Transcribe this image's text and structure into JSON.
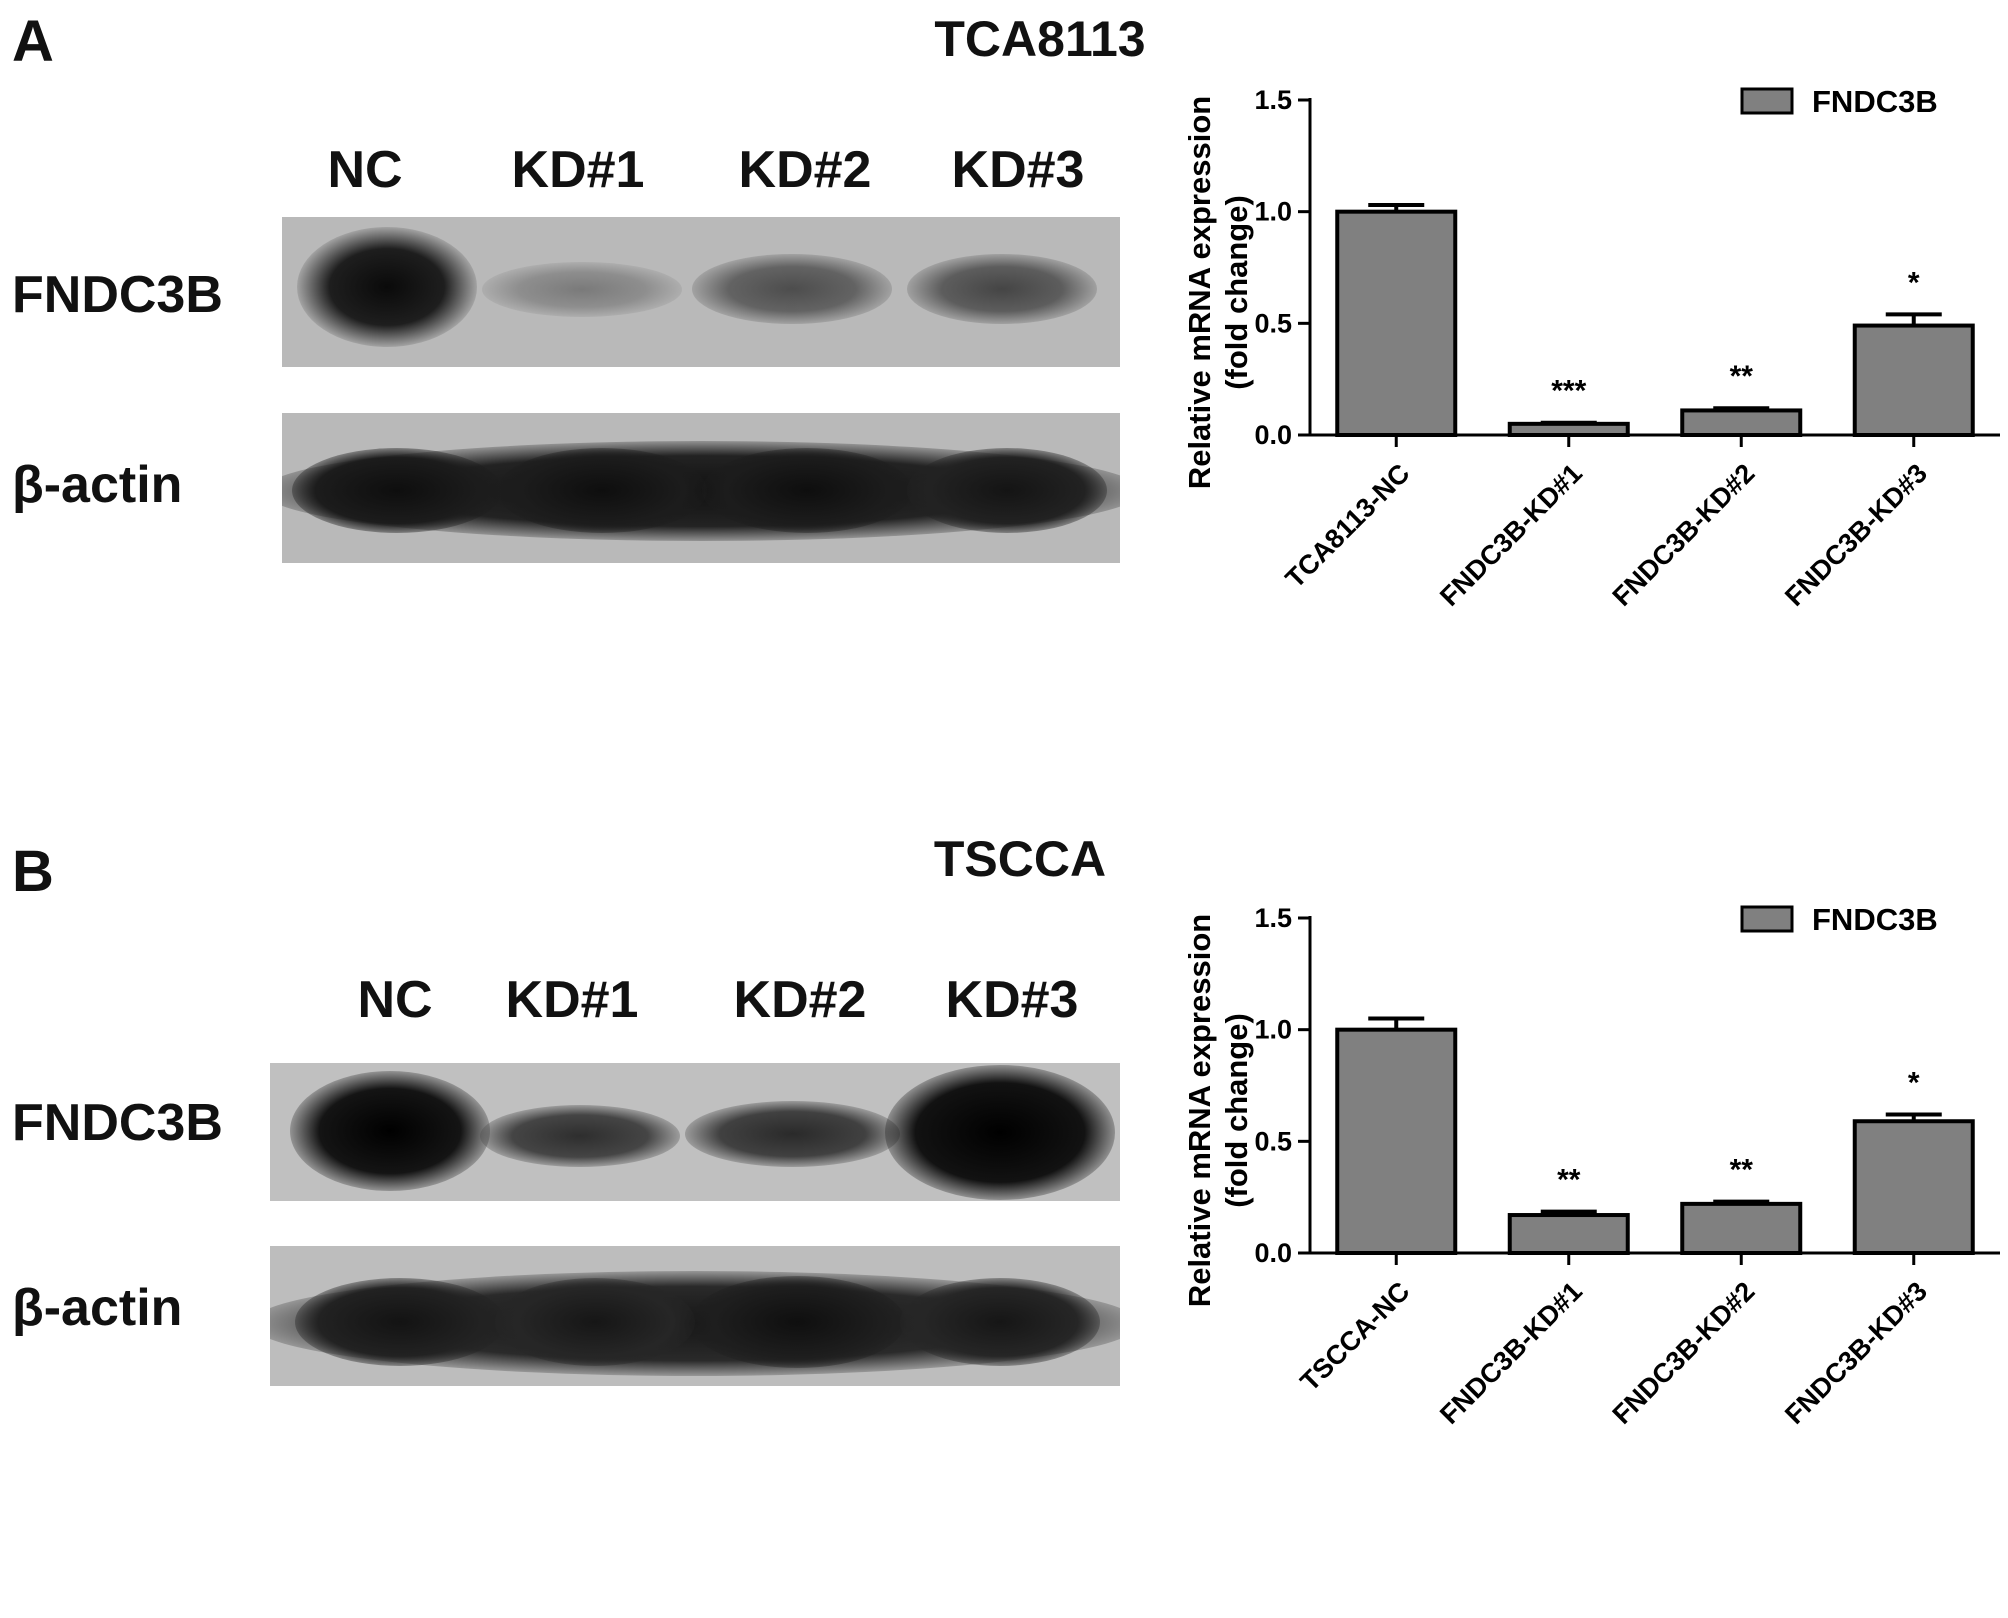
{
  "panels": [
    {
      "letter": "A",
      "title": "TCA8113",
      "lanes": [
        "NC",
        "KD#1",
        "KD#2",
        "KD#3"
      ],
      "blot_rows": [
        "FNDC3B",
        "β-actin"
      ],
      "chart_data": {
        "type": "bar",
        "categories": [
          "TCA8113-NC",
          "FNDC3B-KD#1",
          "FNDC3B-KD#2",
          "FNDC3B-KD#3"
        ],
        "series": [
          {
            "name": "FNDC3B",
            "values": [
              1.0,
              0.05,
              0.11,
              0.49
            ],
            "errors": [
              0.03,
              0.005,
              0.01,
              0.05
            ]
          }
        ],
        "significance": [
          "",
          "***",
          "**",
          "*"
        ],
        "ylabel": [
          "Relative mRNA expression",
          "(fold change)"
        ],
        "ylim": [
          0,
          1.5
        ],
        "yticks": [
          "0.0",
          "0.5",
          "1.0",
          "1.5"
        ],
        "grid": false,
        "legend": "top-right",
        "bar_color": "#808080"
      }
    },
    {
      "letter": "B",
      "title": "TSCCA",
      "lanes": [
        "NC",
        "KD#1",
        "KD#2",
        "KD#3"
      ],
      "blot_rows": [
        "FNDC3B",
        "β-actin"
      ],
      "chart_data": {
        "type": "bar",
        "categories": [
          "TSCCA-NC",
          "FNDC3B-KD#1",
          "FNDC3B-KD#2",
          "FNDC3B-KD#3"
        ],
        "series": [
          {
            "name": "FNDC3B",
            "values": [
              1.0,
              0.17,
              0.22,
              0.59
            ],
            "errors": [
              0.05,
              0.015,
              0.01,
              0.03
            ]
          }
        ],
        "significance": [
          "",
          "**",
          "**",
          "*"
        ],
        "ylabel": [
          "Relative mRNA expression",
          "(fold change)"
        ],
        "ylim": [
          0,
          1.5
        ],
        "yticks": [
          "0.0",
          "0.5",
          "1.0",
          "1.5"
        ],
        "grid": false,
        "legend": "top-right",
        "bar_color": "#808080"
      }
    }
  ]
}
